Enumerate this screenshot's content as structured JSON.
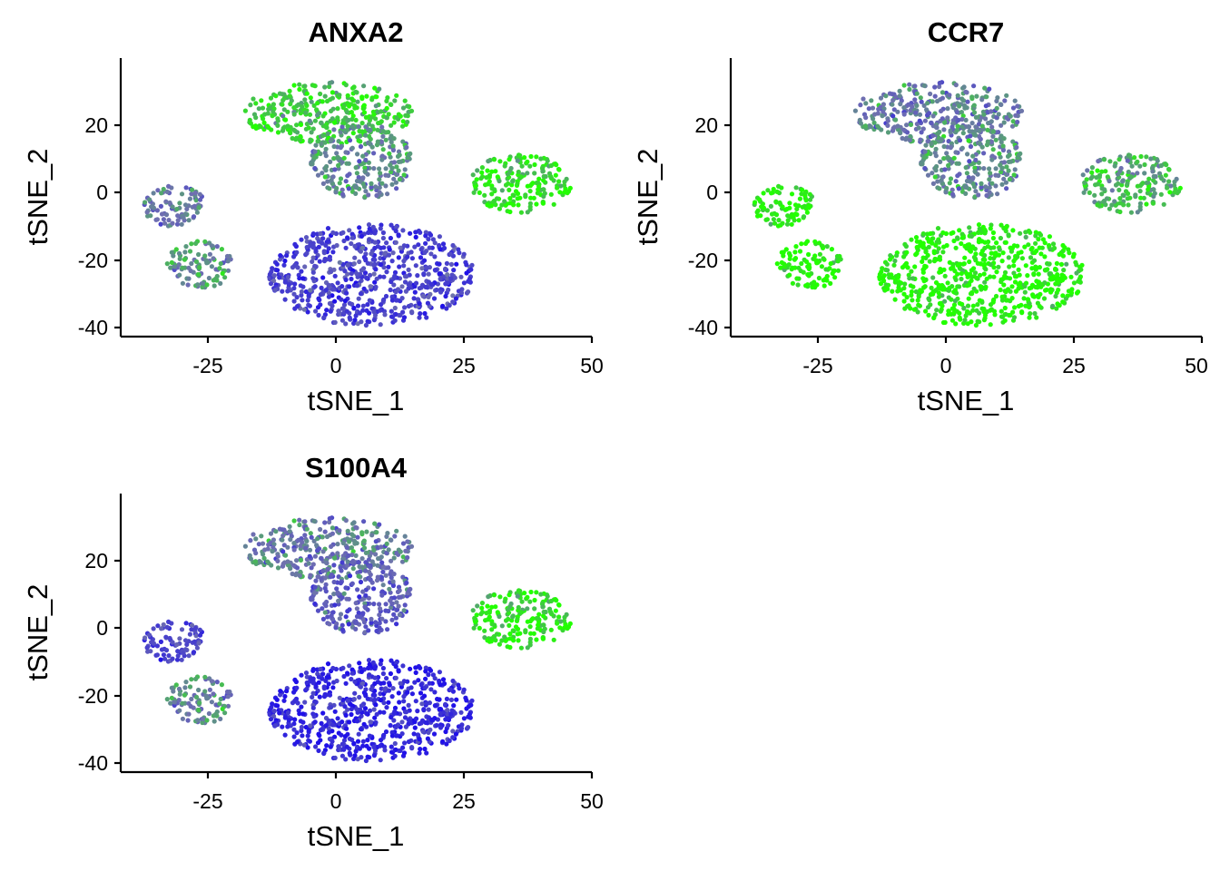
{
  "chart_data": [
    {
      "type": "scatter",
      "title": "ANXA2",
      "xlabel": "tSNE_1",
      "ylabel": "tSNE_2",
      "xlim": [
        -42,
        50
      ],
      "ylim": [
        -42,
        39
      ],
      "x_ticks": [
        -25,
        0,
        25,
        50
      ],
      "y_ticks": [
        -40,
        -20,
        0,
        20
      ],
      "x_tick_labels": [
        "-25",
        "0",
        "25",
        "50"
      ],
      "y_tick_labels": [
        "-40",
        "-20",
        "0",
        "20"
      ],
      "grid": false,
      "legend": "none",
      "color_low": "#1f10e8",
      "color_high": "#22ff00",
      "clusters": [
        {
          "x": [
            -18,
            15
          ],
          "y": [
            14,
            32
          ],
          "expression": 0.85
        },
        {
          "x": [
            -5,
            15
          ],
          "y": [
            -2,
            20
          ],
          "expression": 0.6
        },
        {
          "x": [
            -38,
            -25
          ],
          "y": [
            -10,
            2
          ],
          "expression": 0.55
        },
        {
          "x": [
            -33,
            -20
          ],
          "y": [
            -28,
            -14
          ],
          "expression": 0.6
        },
        {
          "x": [
            -13,
            27
          ],
          "y": [
            -39,
            -9
          ],
          "expression": 0.25
        },
        {
          "x": [
            26,
            46
          ],
          "y": [
            -6,
            11
          ],
          "expression": 0.92
        }
      ]
    },
    {
      "type": "scatter",
      "title": "CCR7",
      "xlabel": "tSNE_1",
      "ylabel": "tSNE_2",
      "xlim": [
        -42,
        50
      ],
      "ylim": [
        -42,
        39
      ],
      "x_ticks": [
        -25,
        0,
        25,
        50
      ],
      "y_ticks": [
        -40,
        -20,
        0,
        20
      ],
      "x_tick_labels": [
        "-25",
        "0",
        "25",
        "50"
      ],
      "y_tick_labels": [
        "-40",
        "-20",
        "0",
        "20"
      ],
      "grid": false,
      "legend": "none",
      "color_low": "#1f10e8",
      "color_high": "#22ff00",
      "clusters": [
        {
          "x": [
            -18,
            15
          ],
          "y": [
            14,
            32
          ],
          "expression": 0.55
        },
        {
          "x": [
            -5,
            15
          ],
          "y": [
            -2,
            20
          ],
          "expression": 0.6
        },
        {
          "x": [
            -38,
            -25
          ],
          "y": [
            -10,
            2
          ],
          "expression": 0.98
        },
        {
          "x": [
            -33,
            -20
          ],
          "y": [
            -28,
            -14
          ],
          "expression": 0.98
        },
        {
          "x": [
            -13,
            27
          ],
          "y": [
            -39,
            -9
          ],
          "expression": 1.0
        },
        {
          "x": [
            26,
            46
          ],
          "y": [
            -6,
            11
          ],
          "expression": 0.75
        }
      ]
    },
    {
      "type": "scatter",
      "title": "S100A4",
      "xlabel": "tSNE_1",
      "ylabel": "tSNE_2",
      "xlim": [
        -42,
        50
      ],
      "ylim": [
        -42,
        39
      ],
      "x_ticks": [
        -25,
        0,
        25,
        50
      ],
      "y_ticks": [
        -40,
        -20,
        0,
        20
      ],
      "x_tick_labels": [
        "-25",
        "0",
        "25",
        "50"
      ],
      "y_tick_labels": [
        "-40",
        "-20",
        "0",
        "20"
      ],
      "grid": false,
      "legend": "none",
      "color_low": "#1f10e8",
      "color_high": "#22ff00",
      "clusters": [
        {
          "x": [
            -18,
            15
          ],
          "y": [
            14,
            32
          ],
          "expression": 0.55
        },
        {
          "x": [
            -5,
            15
          ],
          "y": [
            -2,
            20
          ],
          "expression": 0.4
        },
        {
          "x": [
            -38,
            -25
          ],
          "y": [
            -10,
            2
          ],
          "expression": 0.3
        },
        {
          "x": [
            -33,
            -20
          ],
          "y": [
            -28,
            -14
          ],
          "expression": 0.55
        },
        {
          "x": [
            -13,
            27
          ],
          "y": [
            -39,
            -9
          ],
          "expression": 0.12
        },
        {
          "x": [
            26,
            46
          ],
          "y": [
            -6,
            11
          ],
          "expression": 0.93
        }
      ]
    }
  ]
}
